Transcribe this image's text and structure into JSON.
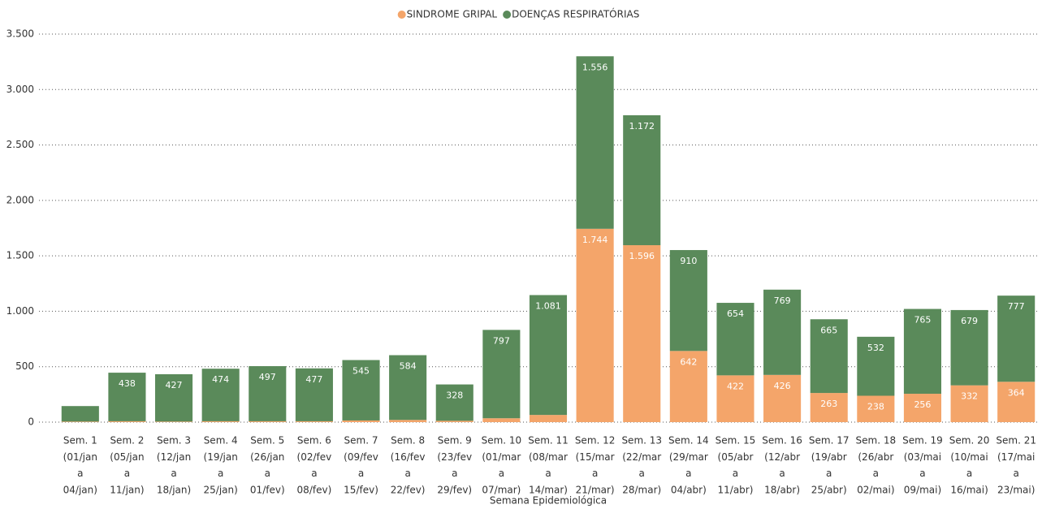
{
  "chart_data": {
    "type": "stacked_bar",
    "x_label": "Semana Epidemiológica",
    "categories": [
      [
        "Sem. 1",
        "(01/jan",
        "a",
        "04/jan)"
      ],
      [
        "Sem. 2",
        "(05/jan",
        "a",
        "11/jan)"
      ],
      [
        "Sem. 3",
        "(12/jan",
        "a",
        "18/jan)"
      ],
      [
        "Sem. 4",
        "(19/jan",
        "a",
        "25/jan)"
      ],
      [
        "Sem. 5",
        "(26/jan",
        "a",
        "01/fev)"
      ],
      [
        "Sem. 6",
        "(02/fev",
        "a",
        "08/fev)"
      ],
      [
        "Sem. 7",
        "(09/fev",
        "a",
        "15/fev)"
      ],
      [
        "Sem. 8",
        "(16/fev",
        "a",
        "22/fev)"
      ],
      [
        "Sem. 9",
        "(23/fev",
        "a",
        "29/fev)"
      ],
      [
        "Sem. 10",
        "(01/mar",
        "a",
        "07/mar)"
      ],
      [
        "Sem. 11",
        "(08/mar",
        "a",
        "14/mar)"
      ],
      [
        "Sem. 12",
        "(15/mar",
        "a",
        "21/mar)"
      ],
      [
        "Sem. 13",
        "(22/mar",
        "a",
        "28/mar)"
      ],
      [
        "Sem. 14",
        "(29/mar",
        "a",
        "04/abr)"
      ],
      [
        "Sem. 15",
        "(05/abr",
        "a",
        "11/abr)"
      ],
      [
        "Sem. 16",
        "(12/abr",
        "a",
        "18/abr)"
      ],
      [
        "Sem. 17",
        "(19/abr",
        "a",
        "25/abr)"
      ],
      [
        "Sem. 18",
        "(26/abr",
        "a",
        "02/mai)"
      ],
      [
        "Sem. 19",
        "(03/mai",
        "a",
        "09/mai)"
      ],
      [
        "Sem. 20",
        "(10/mai",
        "a",
        "16/mai)"
      ],
      [
        "Sem. 21",
        "(17/mai",
        "a",
        "23/mai)"
      ]
    ],
    "series": [
      {
        "name": "SINDROME GRIPAL",
        "color": "#f4a56a",
        "values": [
          5,
          8,
          5,
          8,
          8,
          8,
          15,
          20,
          12,
          35,
          65,
          1744,
          1596,
          642,
          422,
          426,
          263,
          238,
          256,
          332,
          364
        ],
        "value_labels": [
          null,
          null,
          null,
          null,
          null,
          null,
          null,
          null,
          null,
          null,
          null,
          "1.744",
          "1.596",
          "642",
          "422",
          "426",
          "263",
          "238",
          "256",
          "332",
          "364"
        ]
      },
      {
        "name": "DOENÇAS RESPIRATÓRIAS",
        "color": "#5a8a5a",
        "values": [
          140,
          438,
          427,
          474,
          497,
          477,
          545,
          584,
          328,
          797,
          1081,
          1556,
          1172,
          910,
          654,
          769,
          665,
          532,
          765,
          679,
          777
        ],
        "value_labels": [
          null,
          "438",
          "427",
          "474",
          "497",
          "477",
          "545",
          "584",
          "328",
          "797",
          "1.081",
          "1.556",
          "1.172",
          "910",
          "654",
          "769",
          "665",
          "532",
          "765",
          "679",
          "777"
        ]
      }
    ],
    "ylim": [
      0,
      3500
    ],
    "yticks": [
      0,
      500,
      {
        "value": 1000,
        "label": "1.000"
      },
      {
        "value": 1500,
        "label": "1.500"
      },
      {
        "value": 2000,
        "label": "2.000"
      },
      {
        "value": 2500,
        "label": "2.500"
      },
      {
        "value": 3000,
        "label": "3.000"
      },
      {
        "value": 3500,
        "label": "3.500"
      }
    ],
    "grid": true
  }
}
